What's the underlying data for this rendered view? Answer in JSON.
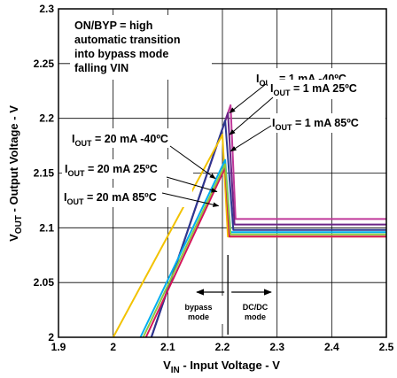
{
  "chart_data": {
    "type": "line",
    "title": "",
    "xlabel": {
      "main": "V",
      "sub": "IN",
      "rest": " - Input Voltage - V"
    },
    "ylabel": {
      "main": "V",
      "sub": "OUT",
      "rest": " - Output Voltage - V"
    },
    "xlim": [
      1.9,
      2.5
    ],
    "ylim": [
      2.0,
      2.3
    ],
    "x_ticks": [
      "1.9",
      "2",
      "2.1",
      "2.2",
      "2.3",
      "2.4",
      "2.5"
    ],
    "y_ticks": [
      "2",
      "2.05",
      "2.1",
      "2.15",
      "2.2",
      "2.25",
      "2.3"
    ],
    "grid": true,
    "note_lines": [
      "ON/BYP = high",
      "automatic transition",
      "into bypass mode",
      "falling VIN"
    ],
    "series": [
      {
        "name": "IOUT = 1 mA -40ºC",
        "color": "#c0399a",
        "points": [
          [
            2.07,
            2.0
          ],
          [
            2.215,
            2.212
          ],
          [
            2.224,
            2.108
          ],
          [
            2.5,
            2.108
          ]
        ]
      },
      {
        "name": "IOUT = 1 mA 25ºC",
        "color": "#6b2486",
        "points": [
          [
            2.07,
            2.0
          ],
          [
            2.21,
            2.205
          ],
          [
            2.222,
            2.103
          ],
          [
            2.5,
            2.103
          ]
        ]
      },
      {
        "name": "IOUT = 1 mA 85ºC",
        "color": "#2b3990",
        "points": [
          [
            2.07,
            2.0
          ],
          [
            2.205,
            2.198
          ],
          [
            2.22,
            2.098
          ],
          [
            2.5,
            2.098
          ]
        ]
      },
      {
        "name": "IOUT = 20 mA -40ºC",
        "color": "#f2c200",
        "points": [
          [
            2.0,
            2.0
          ],
          [
            2.2,
            2.185
          ],
          [
            2.21,
            2.092
          ],
          [
            2.5,
            2.092
          ]
        ]
      },
      {
        "name": "IOUT = 20 mA 25ºC",
        "color": "#00aeef",
        "points": [
          [
            2.05,
            2.0
          ],
          [
            2.205,
            2.162
          ],
          [
            2.215,
            2.096
          ],
          [
            2.5,
            2.096
          ]
        ]
      },
      {
        "name": "IOUT = 20 mA 85ºC",
        "color": "#d4145a",
        "points": [
          [
            2.06,
            2.0
          ],
          [
            2.205,
            2.155
          ],
          [
            2.213,
            2.092
          ],
          [
            2.5,
            2.092
          ]
        ]
      },
      {
        "name": "",
        "color": "#8dc63f",
        "points": [
          [
            2.055,
            2.0
          ],
          [
            2.205,
            2.158
          ],
          [
            2.215,
            2.094
          ],
          [
            2.5,
            2.094
          ]
        ]
      }
    ],
    "annotations": [
      {
        "id": "l1a",
        "label_main": "I",
        "label_sub": "OUT",
        "label_rest": " = 1 mA -40ºC",
        "arrow_to": [
          2.213,
          2.205
        ]
      },
      {
        "id": "l1b",
        "label_main": "I",
        "label_sub": "OUT",
        "label_rest": " = 1 mA 25ºC",
        "arrow_to": [
          2.213,
          2.185
        ]
      },
      {
        "id": "l1c",
        "label_main": "I",
        "label_sub": "OUT",
        "label_rest": " = 1 mA 85ºC",
        "arrow_to": [
          2.215,
          2.17
        ]
      },
      {
        "id": "l20a",
        "label_main": "I",
        "label_sub": "OUT",
        "label_rest": " = 20 mA -40ºC",
        "arrow_to": [
          2.187,
          2.145
        ]
      },
      {
        "id": "l20b",
        "label_main": "I",
        "label_sub": "OUT",
        "label_rest": " = 20 mA 25ºC",
        "arrow_to": [
          2.19,
          2.133
        ]
      },
      {
        "id": "l20c",
        "label_main": "I",
        "label_sub": "OUT",
        "label_rest": " = 20 mA 85ºC",
        "arrow_to": [
          2.193,
          2.12
        ]
      }
    ],
    "region_labels": {
      "boundary_x": 2.21,
      "bypass": [
        "bypass",
        "mode"
      ],
      "dcdc": [
        "DC/DC",
        "mode"
      ]
    }
  }
}
